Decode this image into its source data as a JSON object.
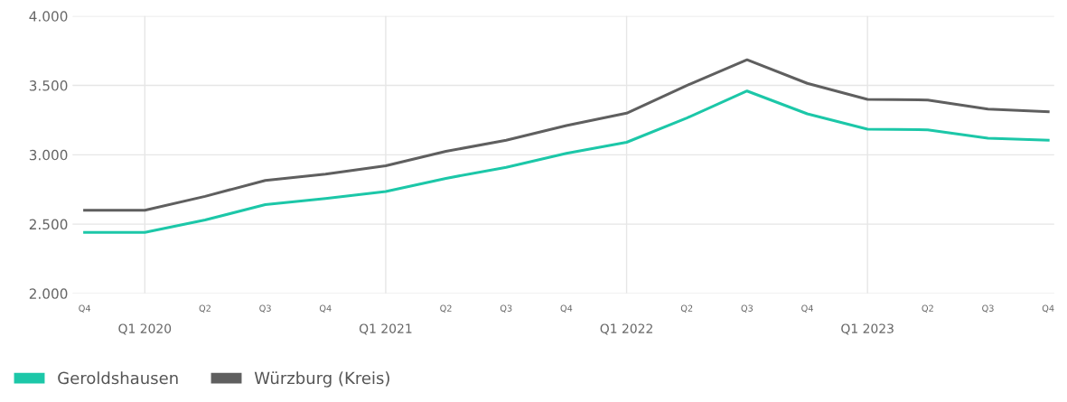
{
  "chart_data": {
    "type": "line",
    "categories": [
      "Q4",
      "Q1 2020",
      "Q2",
      "Q3",
      "Q4",
      "Q1 2021",
      "Q2",
      "Q3",
      "Q4",
      "Q1 2022",
      "Q2",
      "Q3",
      "Q4",
      "Q1 2023",
      "Q2",
      "Q3",
      "Q4"
    ],
    "series": [
      {
        "name": "Geroldshausen",
        "color": "#1cc7a8",
        "values": [
          2440,
          2440,
          2530,
          2640,
          2685,
          2735,
          2830,
          2910,
          3010,
          3090,
          3265,
          3460,
          3295,
          3185,
          3180,
          3120,
          3105
        ]
      },
      {
        "name": "Würzburg (Kreis)",
        "color": "#5f5f5f",
        "values": [
          2600,
          2600,
          2700,
          2815,
          2860,
          2920,
          3025,
          3105,
          3210,
          3300,
          3500,
          3685,
          3515,
          3400,
          3395,
          3330,
          3310
        ]
      }
    ],
    "ylim": [
      2000,
      4000
    ],
    "yticks": [
      {
        "value": 2000,
        "label": "2.000"
      },
      {
        "value": 2500,
        "label": "2.500"
      },
      {
        "value": 3000,
        "label": "3.000"
      },
      {
        "value": 3500,
        "label": "3.500"
      },
      {
        "value": 4000,
        "label": "4.000"
      }
    ],
    "grid": true,
    "legend": "bottom left",
    "marker": "none",
    "line_style": "solid"
  }
}
